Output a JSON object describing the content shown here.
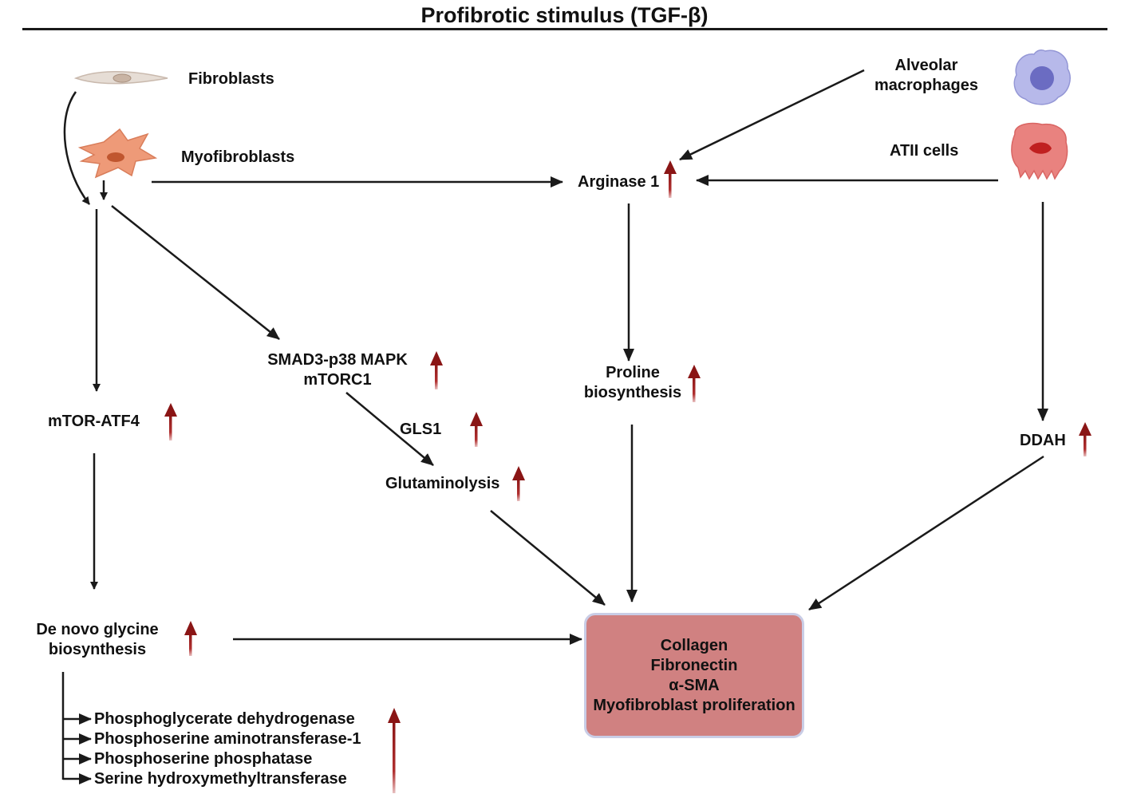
{
  "header": {
    "title": "Profibrotic stimulus (TGF-β)"
  },
  "cells": {
    "fibroblasts": "Fibroblasts",
    "myofibroblasts": "Myofibroblasts",
    "alveolar_macrophages": [
      "Alveolar",
      "macrophages"
    ],
    "atii_cells": "ATII cells"
  },
  "nodes": {
    "arginase": "Arginase 1",
    "smad": [
      "SMAD3-p38 MAPK",
      "mTORC1"
    ],
    "proline": [
      "Proline",
      "biosynthesis"
    ],
    "mtor_atf4": "mTOR-ATF4",
    "gls1": "GLS1",
    "glutaminolysis": "Glutaminolysis",
    "ddah": "DDAH",
    "glycine": [
      "De novo glycine",
      "biosynthesis"
    ]
  },
  "outcome": [
    "Collagen",
    "Fibronectin",
    "α-SMA",
    "Myofibroblast proliferation"
  ],
  "enzymes": [
    "Phosphoglycerate dehydrogenase",
    "Phosphoserine aminotransferase-1",
    "Phosphoserine phosphatase",
    "Serine hydroxymethyltransferase"
  ],
  "colors": {
    "arrow": "#1a1a1a",
    "up_arrow": "#9b1c1c",
    "outcome_fill": "#d08181",
    "outcome_border": "#c9cde6"
  }
}
